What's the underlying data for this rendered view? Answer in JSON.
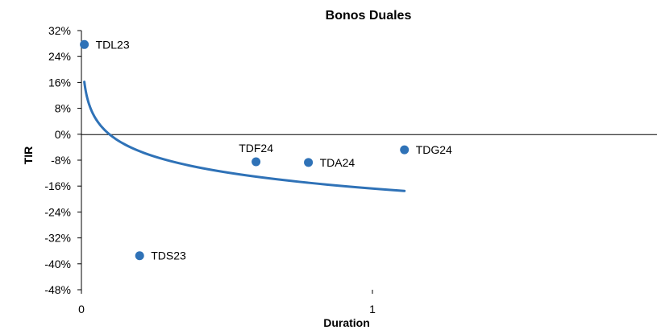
{
  "chart_data": {
    "type": "scatter",
    "title": "Bonos Duales",
    "xlabel": "Duration",
    "ylabel": "TIR",
    "xlim": [
      0,
      2
    ],
    "ylim": [
      -48,
      32
    ],
    "x_ticks": [
      0,
      1
    ],
    "x_tick_labels": [
      "0",
      "1"
    ],
    "y_ticks": [
      32,
      24,
      16,
      8,
      0,
      -8,
      -16,
      -24,
      -32,
      -40,
      -48
    ],
    "y_tick_labels": [
      "32%",
      "24%",
      "16%",
      "8%",
      "0%",
      "-8%",
      "-16%",
      "-24%",
      "-32%",
      "-40%",
      "-48%"
    ],
    "grid": false,
    "legend": "none",
    "series": [
      {
        "type": "scatter",
        "color": "#2f72b7",
        "points": [
          {
            "label": "TDL23",
            "x": 0.01,
            "y": 27.7
          },
          {
            "label": "TDS23",
            "x": 0.2,
            "y": -37.5
          },
          {
            "label": "TDF24",
            "x": 0.6,
            "y": -8.5
          },
          {
            "label": "TDA24",
            "x": 0.78,
            "y": -8.7
          },
          {
            "label": "TDG24",
            "x": 1.11,
            "y": -4.8
          }
        ]
      },
      {
        "type": "trendline",
        "kind": "logarithmic",
        "color": "#2f72b7",
        "x_range": [
          0.01,
          1.11
        ],
        "a": -0.0715,
        "b": -16.75
      }
    ]
  }
}
